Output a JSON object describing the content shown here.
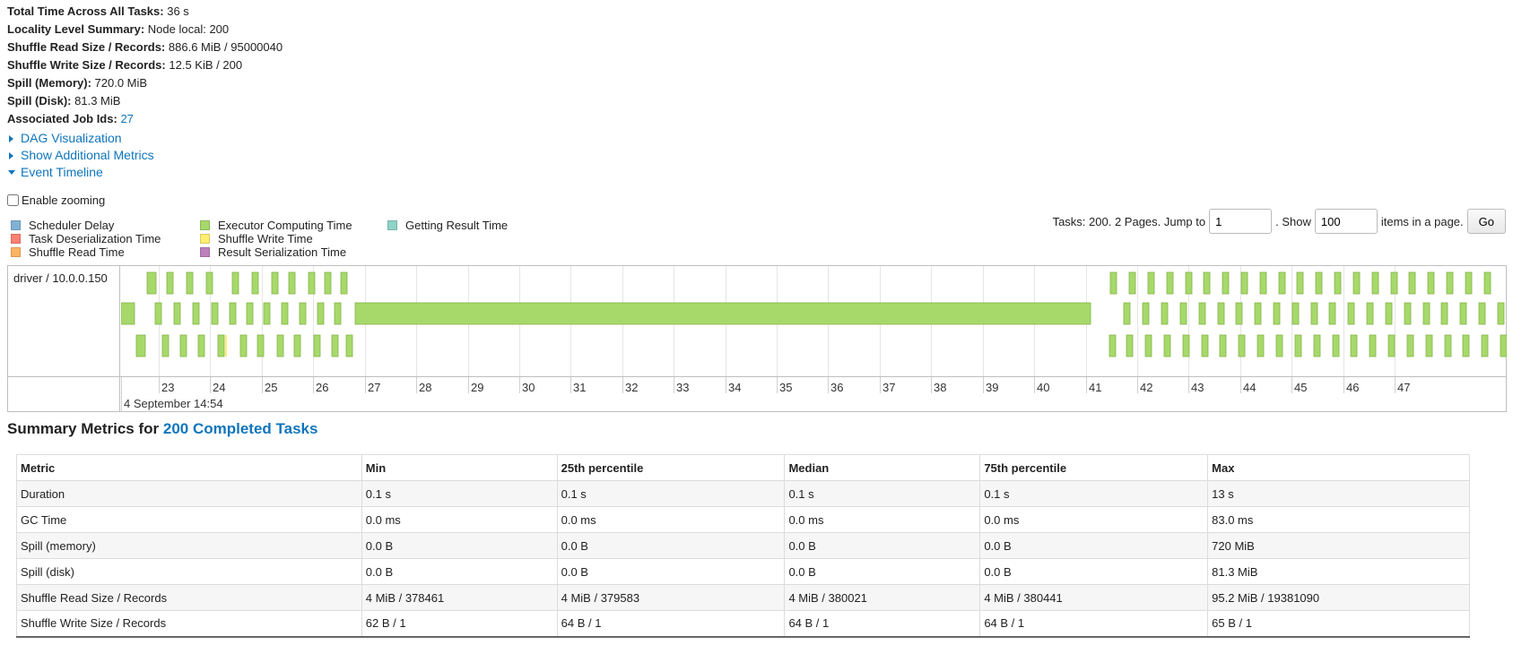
{
  "summary": [
    {
      "label": "Total Time Across All Tasks:",
      "value": "36 s"
    },
    {
      "label": "Locality Level Summary:",
      "value": "Node local: 200"
    },
    {
      "label": "Shuffle Read Size / Records:",
      "value": "886.6 MiB / 95000040"
    },
    {
      "label": "Shuffle Write Size / Records:",
      "value": "12.5 KiB / 200"
    },
    {
      "label": "Spill (Memory):",
      "value": "720.0 MiB"
    },
    {
      "label": "Spill (Disk):",
      "value": "81.3 MiB"
    },
    {
      "label": "Associated Job Ids:",
      "value": "27"
    }
  ],
  "expanders": {
    "dag": "DAG Visualization",
    "additional_metrics": "Show Additional Metrics",
    "event_timeline": "Event Timeline"
  },
  "zoom_label": "Enable zooming",
  "legend": [
    {
      "label": "Scheduler Delay",
      "color": "#80b1d3"
    },
    {
      "label": "Task Deserialization Time",
      "color": "#fb8072"
    },
    {
      "label": "Shuffle Read Time",
      "color": "#fdb462"
    },
    {
      "label": "Executor Computing Time",
      "color": "#a6d96a"
    },
    {
      "label": "Shuffle Write Time",
      "color": "#ffed6f"
    },
    {
      "label": "Result Serialization Time",
      "color": "#bc80bd"
    },
    {
      "label": "Getting Result Time",
      "color": "#8dd3c7"
    }
  ],
  "pager": {
    "tasks_text": "Tasks: 200. 2 Pages. Jump to",
    "page_value": "1",
    "show_text": ". Show",
    "show_value": "100",
    "items_text": "items in a page.",
    "go_label": "Go"
  },
  "timeline": {
    "group_label": "driver / 10.0.0.150",
    "ticks": [
      "23",
      "24",
      "25",
      "26",
      "27",
      "28",
      "29",
      "30",
      "31",
      "32",
      "33",
      "34",
      "35",
      "36",
      "37",
      "38",
      "39",
      "40",
      "41",
      "42",
      "43",
      "44",
      "45",
      "46",
      "47"
    ],
    "major_label": "4 September 14:54"
  },
  "metrics_title": {
    "prefix": "Summary Metrics for",
    "link": "200 Completed Tasks"
  },
  "metrics": {
    "headers": [
      "Metric",
      "Min",
      "25th percentile",
      "Median",
      "75th percentile",
      "Max"
    ],
    "rows": [
      [
        "Duration",
        "0.1 s",
        "0.1 s",
        "0.1 s",
        "0.1 s",
        "13 s"
      ],
      [
        "GC Time",
        "0.0 ms",
        "0.0 ms",
        "0.0 ms",
        "0.0 ms",
        "83.0 ms"
      ],
      [
        "Spill (memory)",
        "0.0 B",
        "0.0 B",
        "0.0 B",
        "0.0 B",
        "720 MiB"
      ],
      [
        "Spill (disk)",
        "0.0 B",
        "0.0 B",
        "0.0 B",
        "0.0 B",
        "81.3 MiB"
      ],
      [
        "Shuffle Read Size / Records",
        "4 MiB / 378461",
        "4 MiB / 379583",
        "4 MiB / 380021",
        "4 MiB / 380441",
        "95.2 MiB / 19381090"
      ],
      [
        "Shuffle Write Size / Records",
        "62 B / 1",
        "64 B / 1",
        "64 B / 1",
        "64 B / 1",
        "65 B / 1"
      ]
    ]
  }
}
